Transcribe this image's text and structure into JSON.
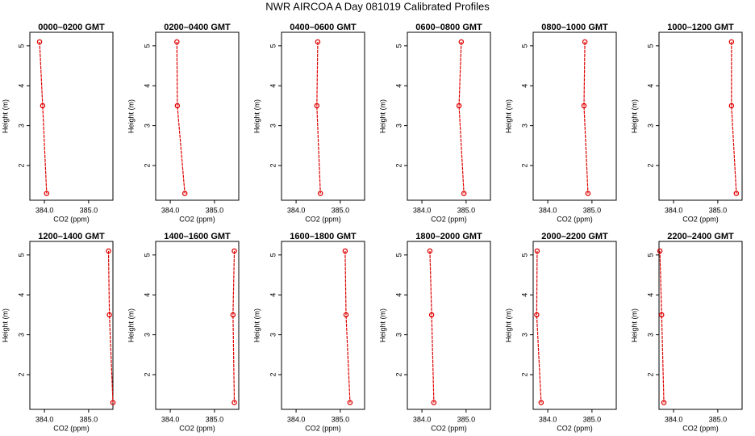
{
  "title": "NWR AIRCOA A  Day 081019  Calibrated Profiles",
  "chart_data": [
    {
      "type": "line",
      "title": "0000–0200 GMT",
      "xlabel": "CO2 (ppm)",
      "ylabel": "Height (m)",
      "x": [
        383.89,
        383.96,
        384.05
      ],
      "series": [
        {
          "color": "#e00000",
          "values": [
            5.1,
            3.5,
            1.3
          ]
        }
      ],
      "xlim": [
        383.67,
        385.55
      ],
      "ylim": [
        1.13,
        5.34
      ],
      "xticks": [
        {
          "value": 384,
          "label": "384.0"
        },
        {
          "value": 385,
          "label": "385.0"
        }
      ],
      "yticks": [
        2,
        3,
        4,
        5
      ]
    },
    {
      "type": "line",
      "title": "0200–0400 GMT",
      "xlabel": "CO2 (ppm)",
      "ylabel": "Height (m)",
      "x": [
        384.15,
        384.16,
        384.33
      ],
      "series": [
        {
          "color": "#e00000",
          "values": [
            5.1,
            3.5,
            1.3
          ]
        }
      ],
      "xlim": [
        383.67,
        385.55
      ],
      "ylim": [
        1.13,
        5.34
      ],
      "xticks": [
        {
          "value": 384,
          "label": "384.0"
        },
        {
          "value": 385,
          "label": "385.0"
        }
      ],
      "yticks": [
        2,
        3,
        4,
        5
      ]
    },
    {
      "type": "line",
      "title": "0400–0600 GMT",
      "xlabel": "CO2 (ppm)",
      "ylabel": "Height (m)",
      "x": [
        384.49,
        384.47,
        384.55
      ],
      "series": [
        {
          "color": "#e00000",
          "values": [
            5.1,
            3.5,
            1.3
          ]
        }
      ],
      "xlim": [
        383.67,
        385.55
      ],
      "ylim": [
        1.13,
        5.34
      ],
      "xticks": [
        {
          "value": 384,
          "label": "384.0"
        },
        {
          "value": 385,
          "label": "385.0"
        }
      ],
      "yticks": [
        2,
        3,
        4,
        5
      ]
    },
    {
      "type": "line",
      "title": "0600–0800 GMT",
      "xlabel": "CO2 (ppm)",
      "ylabel": "Height (m)",
      "x": [
        384.89,
        384.84,
        384.95
      ],
      "series": [
        {
          "color": "#e00000",
          "values": [
            5.1,
            3.5,
            1.3
          ]
        }
      ],
      "xlim": [
        383.67,
        385.55
      ],
      "ylim": [
        1.13,
        5.34
      ],
      "xticks": [
        {
          "value": 384,
          "label": "384.0"
        },
        {
          "value": 385,
          "label": "385.0"
        }
      ],
      "yticks": [
        2,
        3,
        4,
        5
      ]
    },
    {
      "type": "line",
      "title": "0800–1000 GMT",
      "xlabel": "CO2 (ppm)",
      "ylabel": "Height (m)",
      "x": [
        384.84,
        384.82,
        384.91
      ],
      "series": [
        {
          "color": "#e00000",
          "values": [
            5.1,
            3.5,
            1.3
          ]
        }
      ],
      "xlim": [
        383.67,
        385.55
      ],
      "ylim": [
        1.13,
        5.34
      ],
      "xticks": [
        {
          "value": 384,
          "label": "384.0"
        },
        {
          "value": 385,
          "label": "385.0"
        }
      ],
      "yticks": [
        2,
        3,
        4,
        5
      ]
    },
    {
      "type": "line",
      "title": "1000–1200 GMT",
      "xlabel": "CO2 (ppm)",
      "ylabel": "Height (m)",
      "x": [
        385.31,
        385.31,
        385.42
      ],
      "series": [
        {
          "color": "#e00000",
          "values": [
            5.1,
            3.5,
            1.3
          ]
        }
      ],
      "xlim": [
        383.67,
        385.55
      ],
      "ylim": [
        1.13,
        5.34
      ],
      "xticks": [
        {
          "value": 384,
          "label": "384.0"
        },
        {
          "value": 385,
          "label": "385.0"
        }
      ],
      "yticks": [
        2,
        3,
        4,
        5
      ]
    },
    {
      "type": "line",
      "title": "1200–1400 GMT",
      "xlabel": "CO2 (ppm)",
      "ylabel": "Height (m)",
      "x": [
        385.45,
        385.47,
        385.55
      ],
      "series": [
        {
          "color": "#e00000",
          "values": [
            5.1,
            3.5,
            1.3
          ]
        }
      ],
      "xlim": [
        383.67,
        385.55
      ],
      "ylim": [
        1.13,
        5.34
      ],
      "xticks": [
        {
          "value": 384,
          "label": "384.0"
        },
        {
          "value": 385,
          "label": "385.0"
        }
      ],
      "yticks": [
        2,
        3,
        4,
        5
      ]
    },
    {
      "type": "line",
      "title": "1400–1600 GMT",
      "xlabel": "CO2 (ppm)",
      "ylabel": "Height (m)",
      "x": [
        385.45,
        385.42,
        385.45
      ],
      "series": [
        {
          "color": "#e00000",
          "values": [
            5.1,
            3.5,
            1.3
          ]
        }
      ],
      "xlim": [
        383.67,
        385.55
      ],
      "ylim": [
        1.13,
        5.34
      ],
      "xticks": [
        {
          "value": 384,
          "label": "384.0"
        },
        {
          "value": 385,
          "label": "385.0"
        }
      ],
      "yticks": [
        2,
        3,
        4,
        5
      ]
    },
    {
      "type": "line",
      "title": "1600–1800 GMT",
      "xlabel": "CO2 (ppm)",
      "ylabel": "Height (m)",
      "x": [
        385.11,
        385.13,
        385.22
      ],
      "series": [
        {
          "color": "#e00000",
          "values": [
            5.1,
            3.5,
            1.3
          ]
        }
      ],
      "xlim": [
        383.67,
        385.55
      ],
      "ylim": [
        1.13,
        5.34
      ],
      "xticks": [
        {
          "value": 384,
          "label": "384.0"
        },
        {
          "value": 385,
          "label": "385.0"
        }
      ],
      "yticks": [
        2,
        3,
        4,
        5
      ]
    },
    {
      "type": "line",
      "title": "1800–2000 GMT",
      "xlabel": "CO2 (ppm)",
      "ylabel": "Height (m)",
      "x": [
        384.18,
        384.22,
        384.27
      ],
      "series": [
        {
          "color": "#e00000",
          "values": [
            5.1,
            3.5,
            1.3
          ]
        }
      ],
      "xlim": [
        383.67,
        385.55
      ],
      "ylim": [
        1.13,
        5.34
      ],
      "xticks": [
        {
          "value": 384,
          "label": "384.0"
        },
        {
          "value": 385,
          "label": "385.0"
        }
      ],
      "yticks": [
        2,
        3,
        4,
        5
      ]
    },
    {
      "type": "line",
      "title": "2000–2200 GMT",
      "xlabel": "CO2 (ppm)",
      "ylabel": "Height (m)",
      "x": [
        383.76,
        383.75,
        383.85
      ],
      "series": [
        {
          "color": "#e00000",
          "values": [
            5.1,
            3.5,
            1.3
          ]
        }
      ],
      "xlim": [
        383.67,
        385.55
      ],
      "ylim": [
        1.13,
        5.34
      ],
      "xticks": [
        {
          "value": 384,
          "label": "384.0"
        },
        {
          "value": 385,
          "label": "385.0"
        }
      ],
      "yticks": [
        2,
        3,
        4,
        5
      ]
    },
    {
      "type": "line",
      "title": "2200–2400 GMT",
      "xlabel": "CO2 (ppm)",
      "ylabel": "Height (m)",
      "x": [
        383.69,
        383.73,
        383.78
      ],
      "series": [
        {
          "color": "#e00000",
          "values": [
            5.1,
            3.5,
            1.3
          ]
        }
      ],
      "xlim": [
        383.67,
        385.55
      ],
      "ylim": [
        1.13,
        5.34
      ],
      "xticks": [
        {
          "value": 384,
          "label": "384.0"
        },
        {
          "value": 385,
          "label": "385.0"
        }
      ],
      "yticks": [
        2,
        3,
        4,
        5
      ]
    }
  ]
}
